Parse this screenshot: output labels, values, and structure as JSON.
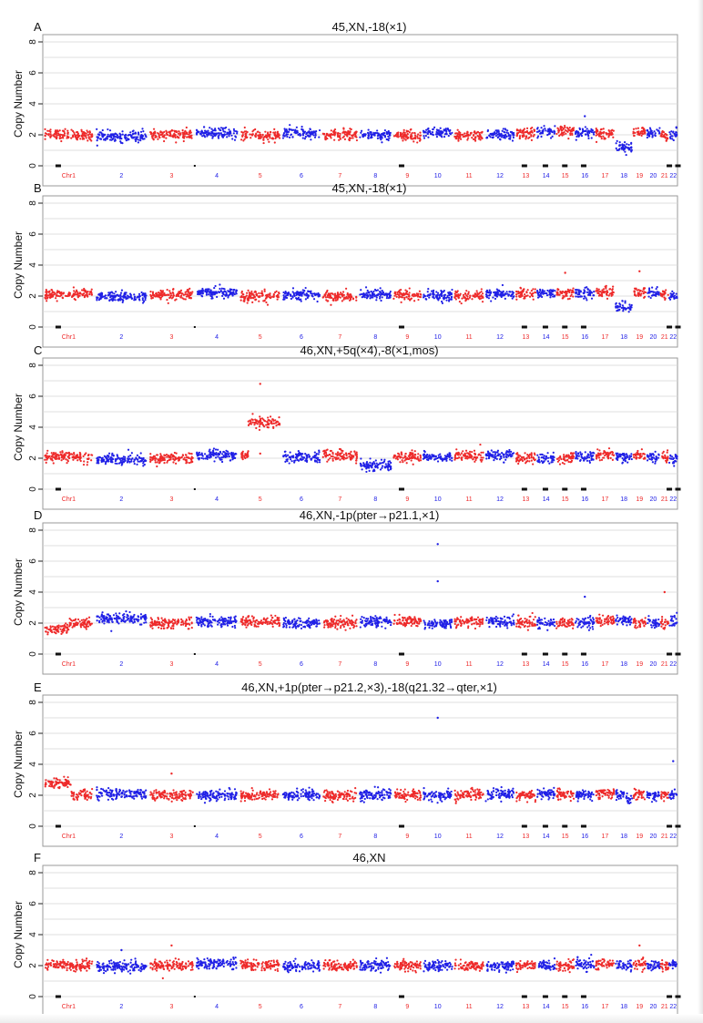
{
  "figure": {
    "colors": {
      "red": "#ee2a2a",
      "blue": "#2020e6",
      "grid": "#d4d4d4",
      "axis": "#222222",
      "marker": "#111111"
    }
  },
  "chart_data": [
    {
      "type": "scatter",
      "panel_label": "A",
      "title": "45,XN,-18(×1)",
      "xlabel": "",
      "ylabel": "Copy Number",
      "ylim": [
        0,
        8
      ],
      "yticks": [
        "0",
        "2",
        "4",
        "6",
        "8"
      ],
      "grid": true,
      "categories": [
        "Chr1",
        "2",
        "3",
        "4",
        "5",
        "6",
        "7",
        "8",
        "9",
        "10",
        "11",
        "12",
        "13",
        "14",
        "15",
        "16",
        "17",
        "18",
        "19",
        "20",
        "21",
        "22"
      ],
      "series": [
        {
          "name": "copy_number_by_chromosome",
          "values": [
            2.0,
            1.9,
            2.0,
            2.1,
            1.95,
            2.1,
            2.0,
            2.0,
            1.95,
            2.1,
            1.95,
            2.0,
            2.1,
            2.2,
            2.2,
            2.15,
            2.1,
            1.2,
            2.15,
            2.1,
            2.0,
            2.05
          ]
        }
      ],
      "outliers": [
        {
          "x": "16",
          "y": 3.2
        }
      ]
    },
    {
      "type": "scatter",
      "panel_label": "B",
      "title": "45,XN,-18(×1)",
      "xlabel": "",
      "ylabel": "Copy Number",
      "ylim": [
        0,
        8
      ],
      "yticks": [
        "0",
        "2",
        "4",
        "6",
        "8"
      ],
      "grid": true,
      "categories": [
        "Chr1",
        "2",
        "3",
        "4",
        "5",
        "6",
        "7",
        "8",
        "9",
        "10",
        "11",
        "12",
        "13",
        "14",
        "15",
        "16",
        "17",
        "18",
        "19",
        "20",
        "21",
        "22"
      ],
      "series": [
        {
          "name": "copy_number_by_chromosome",
          "values": [
            2.1,
            1.95,
            2.05,
            2.2,
            2.0,
            2.1,
            2.0,
            2.1,
            2.05,
            2.05,
            2.0,
            2.1,
            2.15,
            2.2,
            2.2,
            2.15,
            2.25,
            1.3,
            2.2,
            2.2,
            2.1,
            2.0
          ]
        }
      ],
      "outliers": [
        {
          "x": "15",
          "y": 3.5
        },
        {
          "x": "19",
          "y": 3.6
        }
      ]
    },
    {
      "type": "scatter",
      "panel_label": "C",
      "title": "46,XN,+5q(×4),-8(×1,mos)",
      "xlabel": "",
      "ylabel": "Copy Number",
      "ylim": [
        0,
        8
      ],
      "yticks": [
        "0",
        "2",
        "4",
        "6",
        "8"
      ],
      "grid": true,
      "categories": [
        "Chr1",
        "2",
        "3",
        "4",
        "5",
        "6",
        "7",
        "8",
        "9",
        "10",
        "11",
        "12",
        "13",
        "14",
        "15",
        "16",
        "17",
        "18",
        "19",
        "20",
        "21",
        "22"
      ],
      "series": [
        {
          "name": "copy_number_by_chromosome",
          "values": [
            2.1,
            1.9,
            2.0,
            2.2,
            4.3,
            2.1,
            2.15,
            1.5,
            2.1,
            2.05,
            2.15,
            2.2,
            2.0,
            1.95,
            2.0,
            2.1,
            2.2,
            2.1,
            2.2,
            2.1,
            2.1,
            1.9
          ]
        }
      ],
      "outliers": [
        {
          "x": "5",
          "y": 6.8
        },
        {
          "x": "5",
          "y": 2.3
        }
      ]
    },
    {
      "type": "scatter",
      "panel_label": "D",
      "title": "46,XN,-1p(pter→p21.1,×1)",
      "xlabel": "",
      "ylabel": "Copy Number",
      "ylim": [
        0,
        8
      ],
      "yticks": [
        "0",
        "2",
        "4",
        "6",
        "8"
      ],
      "grid": true,
      "categories": [
        "Chr1",
        "2",
        "3",
        "4",
        "5",
        "6",
        "7",
        "8",
        "9",
        "10",
        "11",
        "12",
        "13",
        "14",
        "15",
        "16",
        "17",
        "18",
        "19",
        "20",
        "21",
        "22"
      ],
      "series": [
        {
          "name": "copy_number_by_chromosome",
          "values": [
            1.6,
            2.3,
            2.0,
            2.1,
            2.1,
            2.0,
            2.0,
            2.1,
            2.1,
            1.95,
            2.1,
            2.1,
            2.0,
            2.0,
            2.0,
            2.05,
            2.2,
            2.2,
            2.0,
            2.05,
            2.0,
            2.1
          ]
        }
      ],
      "outliers": [
        {
          "x": "10",
          "y": 7.1
        },
        {
          "x": "10",
          "y": 4.7
        },
        {
          "x": "16",
          "y": 3.7
        },
        {
          "x": "21",
          "y": 4.0
        }
      ]
    },
    {
      "type": "scatter",
      "panel_label": "E",
      "title": "46,XN,+1p(pter→p21.2,×3),-18(q21.32→qter,×1)",
      "xlabel": "",
      "ylabel": "Copy Number",
      "ylim": [
        0,
        8
      ],
      "yticks": [
        "0",
        "2",
        "4",
        "6",
        "8"
      ],
      "grid": true,
      "categories": [
        "Chr1",
        "2",
        "3",
        "4",
        "5",
        "6",
        "7",
        "8",
        "9",
        "10",
        "11",
        "12",
        "13",
        "14",
        "15",
        "16",
        "17",
        "18",
        "19",
        "20",
        "21",
        "22"
      ],
      "series": [
        {
          "name": "copy_number_by_chromosome",
          "values": [
            2.8,
            2.1,
            2.0,
            2.0,
            2.0,
            2.05,
            2.0,
            2.0,
            2.0,
            2.0,
            2.0,
            2.05,
            2.0,
            2.1,
            2.05,
            2.0,
            2.1,
            1.7,
            2.05,
            2.0,
            2.0,
            2.0
          ]
        }
      ],
      "outliers": [
        {
          "x": "10",
          "y": 7.0
        },
        {
          "x": "22",
          "y": 4.2
        },
        {
          "x": "3",
          "y": 3.4
        }
      ]
    },
    {
      "type": "scatter",
      "panel_label": "F",
      "title": "46,XN",
      "xlabel": "",
      "ylabel": "Copy Number",
      "ylim": [
        0,
        8
      ],
      "yticks": [
        "0",
        "2",
        "4",
        "6",
        "8"
      ],
      "grid": true,
      "categories": [
        "Chr1",
        "2",
        "3",
        "4",
        "5",
        "6",
        "7",
        "8",
        "9",
        "10",
        "11",
        "12",
        "13",
        "14",
        "15",
        "16",
        "17",
        "18",
        "19",
        "20",
        "21",
        "22"
      ],
      "series": [
        {
          "name": "copy_number_by_chromosome",
          "values": [
            2.05,
            1.95,
            2.0,
            2.15,
            2.05,
            1.95,
            2.0,
            2.0,
            2.0,
            2.0,
            1.95,
            2.0,
            2.0,
            2.0,
            2.0,
            2.05,
            2.1,
            2.05,
            2.1,
            2.0,
            2.0,
            2.1
          ]
        }
      ],
      "outliers": [
        {
          "x": "3",
          "y": 3.3
        },
        {
          "x": "2",
          "y": 3.0
        },
        {
          "x": "19",
          "y": 3.3
        }
      ]
    }
  ]
}
